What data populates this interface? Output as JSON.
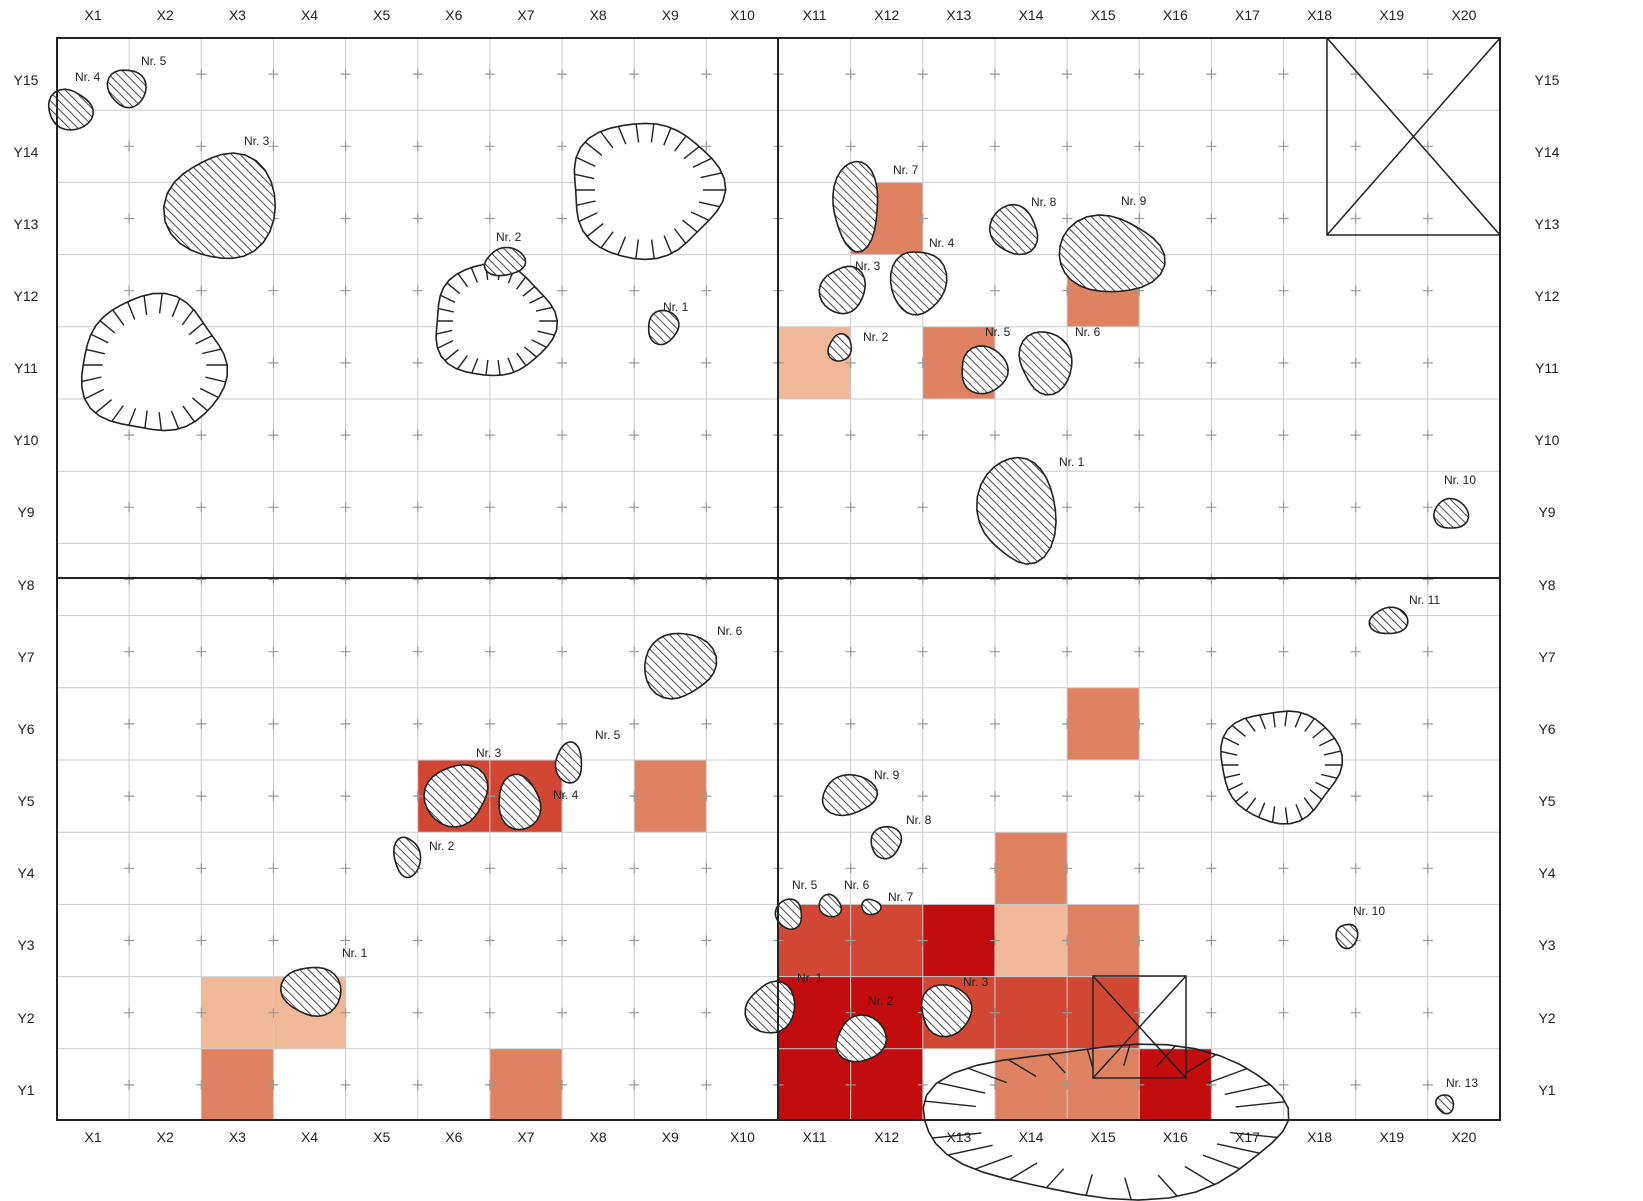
{
  "x_labels": [
    "X1",
    "X2",
    "X3",
    "X4",
    "X5",
    "X6",
    "X7",
    "X8",
    "X9",
    "X10",
    "X11",
    "X12",
    "X13",
    "X14",
    "X15",
    "X16",
    "X17",
    "X18",
    "X19",
    "X20"
  ],
  "y_labels": [
    "Y15",
    "Y14",
    "Y13",
    "Y12",
    "Y11",
    "Y10",
    "Y9",
    "Y8",
    "Y7",
    "Y6",
    "Y5",
    "Y4",
    "Y3",
    "Y2",
    "Y1"
  ],
  "colors": {
    "light": "#f0b896",
    "medium": "#de8262",
    "strong": "#d14734",
    "intense": "#c20c0e",
    "grid": "#cccccc",
    "frame": "#222222"
  },
  "cells": [
    {
      "x": "X11",
      "y": "Y11",
      "level": "light"
    },
    {
      "x": "X12",
      "y": "Y13",
      "level": "medium"
    },
    {
      "x": "X13",
      "y": "Y11",
      "level": "medium"
    },
    {
      "x": "X15",
      "y": "Y12",
      "level": "medium"
    },
    {
      "x": "X6",
      "y": "Y5",
      "level": "strong"
    },
    {
      "x": "X7",
      "y": "Y5",
      "level": "strong"
    },
    {
      "x": "X9",
      "y": "Y5",
      "level": "medium"
    },
    {
      "x": "X15",
      "y": "Y6",
      "level": "medium"
    },
    {
      "x": "X14",
      "y": "Y4",
      "level": "medium"
    },
    {
      "x": "X11",
      "y": "Y3",
      "level": "strong"
    },
    {
      "x": "X12",
      "y": "Y3",
      "level": "strong"
    },
    {
      "x": "X13",
      "y": "Y3",
      "level": "intense"
    },
    {
      "x": "X14",
      "y": "Y3",
      "level": "light"
    },
    {
      "x": "X15",
      "y": "Y3",
      "level": "medium"
    },
    {
      "x": "X3",
      "y": "Y2",
      "level": "light"
    },
    {
      "x": "X4",
      "y": "Y2",
      "level": "light"
    },
    {
      "x": "X11",
      "y": "Y2",
      "level": "intense"
    },
    {
      "x": "X12",
      "y": "Y2",
      "level": "intense"
    },
    {
      "x": "X13",
      "y": "Y2",
      "level": "strong"
    },
    {
      "x": "X14",
      "y": "Y2",
      "level": "strong"
    },
    {
      "x": "X15",
      "y": "Y2",
      "level": "strong"
    },
    {
      "x": "X3",
      "y": "Y1",
      "level": "medium"
    },
    {
      "x": "X7",
      "y": "Y1",
      "level": "medium"
    },
    {
      "x": "X11",
      "y": "Y1",
      "level": "intense"
    },
    {
      "x": "X12",
      "y": "Y1",
      "level": "intense"
    },
    {
      "x": "X14",
      "y": "Y1",
      "level": "medium"
    },
    {
      "x": "X15",
      "y": "Y1",
      "level": "medium"
    },
    {
      "x": "X16",
      "y": "Y1",
      "level": "intense"
    }
  ],
  "features": [
    {
      "label": "Nr. 4",
      "icon": "hatched-feature-icon"
    },
    {
      "label": "Nr. 5",
      "icon": "hatched-feature-icon"
    },
    {
      "label": "Nr. 3",
      "icon": "hatched-feature-icon"
    },
    {
      "label": "Nr. 2",
      "icon": "hatched-feature-icon"
    },
    {
      "label": "Nr. 1",
      "icon": "hatched-feature-icon"
    },
    {
      "label": "Nr. 7",
      "icon": "hatched-feature-icon"
    },
    {
      "label": "Nr. 8",
      "icon": "hatched-feature-icon"
    },
    {
      "label": "Nr. 9",
      "icon": "hatched-feature-icon"
    },
    {
      "label": "Nr. 4",
      "icon": "hatched-feature-icon"
    },
    {
      "label": "Nr. 3",
      "icon": "hatched-feature-icon"
    },
    {
      "label": "Nr. 2",
      "icon": "hatched-feature-icon"
    },
    {
      "label": "Nr. 5",
      "icon": "hatched-feature-icon"
    },
    {
      "label": "Nr. 6",
      "icon": "hatched-feature-icon"
    },
    {
      "label": "Nr. 1",
      "icon": "hatched-feature-icon"
    },
    {
      "label": "Nr. 10",
      "icon": "hatched-feature-icon"
    },
    {
      "label": "Nr. 6",
      "icon": "hatched-feature-icon"
    },
    {
      "label": "Nr. 3",
      "icon": "hatched-feature-icon"
    },
    {
      "label": "Nr. 5",
      "icon": "hatched-feature-icon"
    },
    {
      "label": "Nr. 4",
      "icon": "hatched-feature-icon"
    },
    {
      "label": "Nr. 2",
      "icon": "hatched-feature-icon"
    },
    {
      "label": "Nr. 1",
      "icon": "hatched-feature-icon"
    },
    {
      "label": "Nr. 11",
      "icon": "hatched-feature-icon"
    },
    {
      "label": "Nr. 9",
      "icon": "hatched-feature-icon"
    },
    {
      "label": "Nr. 8",
      "icon": "hatched-feature-icon"
    },
    {
      "label": "Nr. 5",
      "icon": "hatched-feature-icon"
    },
    {
      "label": "Nr. 6",
      "icon": "hatched-feature-icon"
    },
    {
      "label": "Nr. 7",
      "icon": "hatched-feature-icon"
    },
    {
      "label": "Nr. 10",
      "icon": "hatched-feature-icon"
    },
    {
      "label": "Nr. 1",
      "icon": "hatched-feature-icon"
    },
    {
      "label": "Nr. 2",
      "icon": "hatched-feature-icon"
    },
    {
      "label": "Nr. 3",
      "icon": "hatched-feature-icon"
    },
    {
      "label": "Nr. 13",
      "icon": "hatched-feature-icon"
    }
  ],
  "pits": [
    {
      "icon": "hachured-pit-icon"
    },
    {
      "icon": "hachured-pit-icon"
    },
    {
      "icon": "hachured-pit-icon"
    },
    {
      "icon": "hachured-pit-icon"
    },
    {
      "icon": "hachured-pit-icon"
    }
  ],
  "markers": [
    {
      "icon": "crossed-box-icon"
    },
    {
      "icon": "crossed-box-icon"
    }
  ]
}
